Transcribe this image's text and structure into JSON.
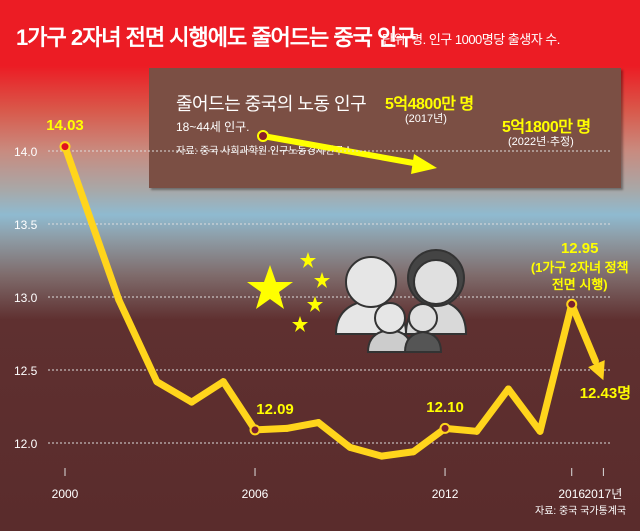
{
  "header": {
    "title": "1가구 2자녀 전면 시행에도 줄어드는 중국 인구",
    "unit": "단위: 명. 인구 1000명당 출생자 수."
  },
  "inset": {
    "title": "줄어드는 중국의 노동 인구",
    "subtitle": "18~44세 인구.",
    "source": "자료: 중국 사회과학원 인구노동경제연구소",
    "start_value": "5억4800만 명",
    "start_year": "(2017년)",
    "end_value": "5억1800만 명",
    "end_year": "(2022년·추정)"
  },
  "colors": {
    "line": "#ffd51c",
    "highlight": "#ffff00",
    "background_dark": "#5a2c2c",
    "title_bar": "#ec1c24"
  },
  "chart_data": {
    "type": "line",
    "title": "1가구 2자녀 전면 시행에도 줄어드는 중국 인구",
    "ylabel": "인구 1000명당 출생자 수",
    "ylim": [
      12.0,
      14.0
    ],
    "yticks": [
      "12.0",
      "12.5",
      "13.0",
      "13.5",
      "14.0"
    ],
    "xticks": [
      "2000",
      "2006",
      "2012",
      "2016",
      "2017년"
    ],
    "x": [
      2000,
      2001.7,
      2002.9,
      2004,
      2005,
      2006,
      2007,
      2008,
      2009,
      2010,
      2011,
      2012,
      2013,
      2014,
      2015,
      2016,
      2017
    ],
    "values": [
      14.03,
      12.98,
      12.42,
      12.28,
      12.42,
      12.09,
      12.1,
      12.14,
      11.97,
      11.91,
      11.94,
      12.1,
      12.08,
      12.37,
      12.08,
      12.95,
      12.43
    ],
    "annotations": {
      "a2000": "14.03",
      "a2006": "12.09",
      "a2012": "12.10",
      "a2016": "12.95",
      "a2016_note1": "(1가구 2자녀 정책",
      "a2016_note2": "전면 시행)",
      "a2017": "12.43명"
    },
    "grid": true,
    "source": "자료: 중국 국가통계국"
  }
}
